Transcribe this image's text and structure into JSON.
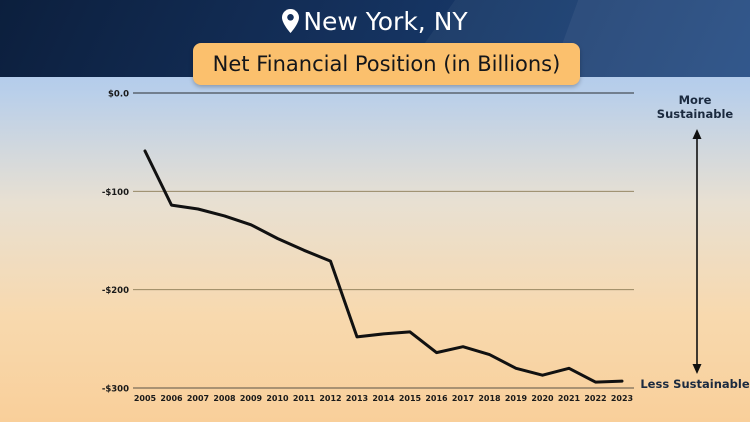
{
  "header": {
    "location": "New York, NY"
  },
  "labels": {
    "more_sustainable": "More Sustainable",
    "less_sustainable": "Less Sustainable"
  },
  "colors": {
    "line": "#111111",
    "title_badge": "#fbc06d",
    "header": "#14305b"
  },
  "chart_data": {
    "type": "line",
    "title": "Net Financial Position (in Billions)",
    "x": [
      "2005",
      "2006",
      "2007",
      "2008",
      "2009",
      "2010",
      "2011",
      "2012",
      "2013",
      "2014",
      "2015",
      "2016",
      "2017",
      "2018",
      "2019",
      "2020",
      "2021",
      "2022",
      "2023"
    ],
    "series": [
      {
        "values": [
          -59,
          -114,
          -118,
          -125,
          -134,
          -148,
          -160,
          -171,
          -248,
          -245,
          -243,
          -264,
          -258,
          -266,
          -280,
          -287,
          -280,
          -294,
          -293
        ]
      }
    ],
    "yticks": [
      0,
      -100,
      -200,
      -300
    ],
    "ytick_labels": [
      "$0.0",
      "-$100",
      "-$200",
      "-$300"
    ],
    "ylim": [
      -300,
      0
    ],
    "grid": true
  }
}
